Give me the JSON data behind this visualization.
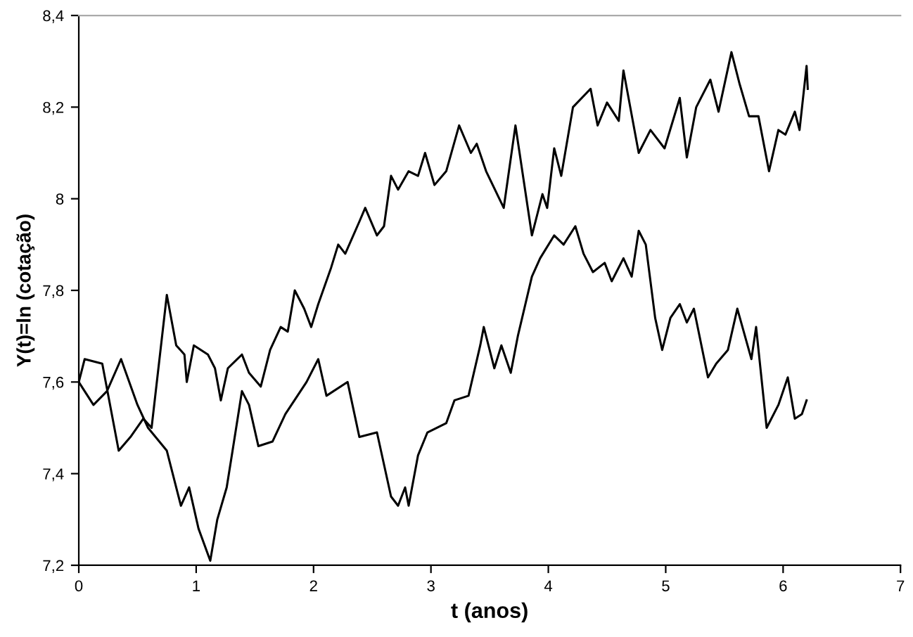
{
  "chart_data": {
    "type": "line",
    "xlabel": "t (anos)",
    "ylabel": "Y(t)=ln (cotação)",
    "xlim": [
      0,
      7
    ],
    "xticks": [
      0,
      1,
      2,
      3,
      4,
      5,
      6,
      7
    ],
    "ylim": [
      7.2,
      8.4
    ],
    "yticks": [
      {
        "value": 7.2,
        "label": "7,2"
      },
      {
        "value": 7.4,
        "label": "7,4"
      },
      {
        "value": 7.6,
        "label": "7,6"
      },
      {
        "value": 7.8,
        "label": "7,8"
      },
      {
        "value": 8,
        "label": "8"
      },
      {
        "value": 8.2,
        "label": "8,2"
      },
      {
        "value": 8.4,
        "label": "8,4"
      }
    ],
    "grid": false,
    "legend": false,
    "marker": "none",
    "line_style": "solid",
    "series": [
      {
        "color": "#000000",
        "x": [
          0,
          0.05,
          0.2,
          0.34,
          0.44,
          0.55,
          0.62,
          0.75,
          0.83,
          0.9,
          0.92,
          0.98,
          1.1,
          1.16,
          1.21,
          1.27,
          1.39,
          1.45,
          1.55,
          1.63,
          1.72,
          1.78,
          1.84,
          1.92,
          1.98,
          2.04,
          2.15,
          2.21,
          2.27,
          2.39,
          2.44,
          2.54,
          2.6,
          2.66,
          2.72,
          2.81,
          2.89,
          2.95,
          3.03,
          3.13,
          3.24,
          3.34,
          3.39,
          3.47,
          3.62,
          3.72,
          3.86,
          3.95,
          3.99,
          4.05,
          4.11,
          4.21,
          4.36,
          4.42,
          4.5,
          4.6,
          4.64,
          4.77,
          4.87,
          4.99,
          5.12,
          5.18,
          5.26,
          5.38,
          5.45,
          5.56,
          5.63,
          5.71,
          5.79,
          5.88,
          5.96,
          6.02,
          6.1,
          6.14,
          6.2,
          6.21
        ],
        "values": [
          7.6,
          7.65,
          7.64,
          7.45,
          7.48,
          7.52,
          7.5,
          7.79,
          7.68,
          7.66,
          7.6,
          7.68,
          7.66,
          7.63,
          7.56,
          7.63,
          7.66,
          7.62,
          7.59,
          7.67,
          7.72,
          7.71,
          7.8,
          7.76,
          7.72,
          7.77,
          7.85,
          7.9,
          7.88,
          7.95,
          7.98,
          7.92,
          7.94,
          8.05,
          8.02,
          8.06,
          8.05,
          8.1,
          8.03,
          8.06,
          8.16,
          8.1,
          8.12,
          8.06,
          7.98,
          8.16,
          7.92,
          8.01,
          7.98,
          8.11,
          8.05,
          8.2,
          8.24,
          8.16,
          8.21,
          8.17,
          8.28,
          8.1,
          8.15,
          8.11,
          8.22,
          8.09,
          8.2,
          8.26,
          8.19,
          8.32,
          8.25,
          8.18,
          8.18,
          8.06,
          8.15,
          8.14,
          8.19,
          8.15,
          8.29,
          8.24
        ]
      },
      {
        "color": "#000000",
        "x": [
          0,
          0.125,
          0.24,
          0.36,
          0.5,
          0.59,
          0.75,
          0.87,
          0.94,
          1.02,
          1.12,
          1.18,
          1.26,
          1.31,
          1.39,
          1.45,
          1.53,
          1.65,
          1.76,
          1.94,
          2.04,
          2.11,
          2.29,
          2.39,
          2.54,
          2.66,
          2.72,
          2.78,
          2.81,
          2.89,
          2.97,
          3.13,
          3.2,
          3.32,
          3.42,
          3.45,
          3.54,
          3.6,
          3.68,
          3.74,
          3.86,
          3.93,
          4.05,
          4.13,
          4.23,
          4.3,
          4.38,
          4.48,
          4.54,
          4.64,
          4.71,
          4.77,
          4.83,
          4.91,
          4.97,
          5.04,
          5.12,
          5.18,
          5.24,
          5.36,
          5.43,
          5.53,
          5.61,
          5.73,
          5.77,
          5.86,
          5.96,
          6.04,
          6.1,
          6.16,
          6.2
        ],
        "values": [
          7.6,
          7.55,
          7.58,
          7.65,
          7.55,
          7.5,
          7.45,
          7.33,
          7.37,
          7.28,
          7.21,
          7.3,
          7.37,
          7.45,
          7.58,
          7.55,
          7.46,
          7.47,
          7.53,
          7.6,
          7.65,
          7.57,
          7.6,
          7.48,
          7.49,
          7.35,
          7.33,
          7.37,
          7.33,
          7.44,
          7.49,
          7.51,
          7.56,
          7.57,
          7.68,
          7.72,
          7.63,
          7.68,
          7.62,
          7.7,
          7.83,
          7.87,
          7.92,
          7.9,
          7.94,
          7.88,
          7.84,
          7.86,
          7.82,
          7.87,
          7.83,
          7.93,
          7.9,
          7.74,
          7.67,
          7.74,
          7.77,
          7.73,
          7.76,
          7.61,
          7.64,
          7.67,
          7.76,
          7.65,
          7.72,
          7.5,
          7.55,
          7.61,
          7.52,
          7.53,
          7.56
        ]
      }
    ]
  }
}
